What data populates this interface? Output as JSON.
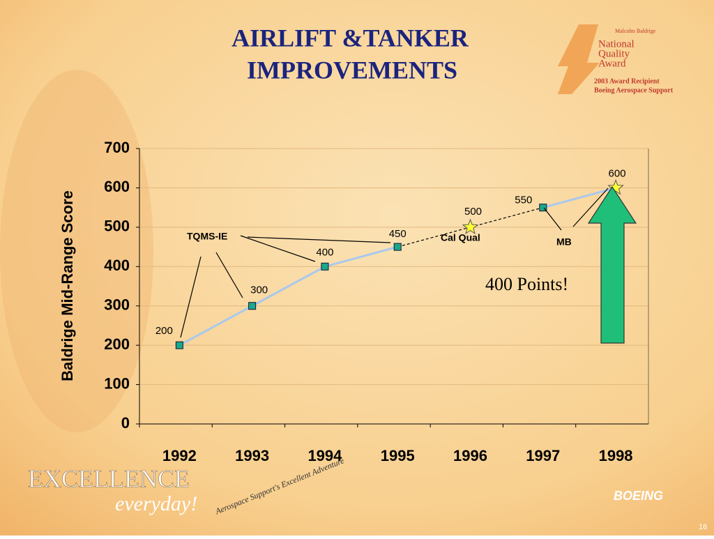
{
  "chart_data": {
    "type": "line",
    "title": [
      "AIRLIFT &TANKER",
      "IMPROVEMENTS"
    ],
    "y_label": "Baldrige Mid-Range Score",
    "categories": [
      "1992",
      "1993",
      "1994",
      "1995",
      "1996",
      "1997",
      "1998"
    ],
    "series": [
      {
        "values": [
          200,
          300,
          400,
          450,
          500,
          550,
          600
        ],
        "color": "#a9c8ee",
        "markers": [
          "square",
          "square",
          "square",
          "square",
          "star",
          "square",
          "star"
        ],
        "segment_styles": [
          "solid",
          "solid",
          "solid",
          "dashed",
          "dashed",
          "solid"
        ]
      }
    ],
    "ylim": [
      0,
      700
    ],
    "yticks": [
      0,
      100,
      200,
      300,
      400,
      500,
      600,
      700
    ],
    "grid": true,
    "annotations": [
      "TQMS-IE",
      "Cal Qual",
      "MB",
      "400 Points!"
    ]
  },
  "award": {
    "lines": [
      "Malcolm Baldrige",
      "National",
      "Quality",
      "Award",
      "2003 Award Recipient",
      "Boeing Aerospace Support"
    ]
  },
  "footer": {
    "brand": "EXCELLENCE",
    "tagline": "everyday!",
    "adventure": "Aerospace Support's Excellent Adventure",
    "company": "BOEING",
    "page": "16"
  }
}
